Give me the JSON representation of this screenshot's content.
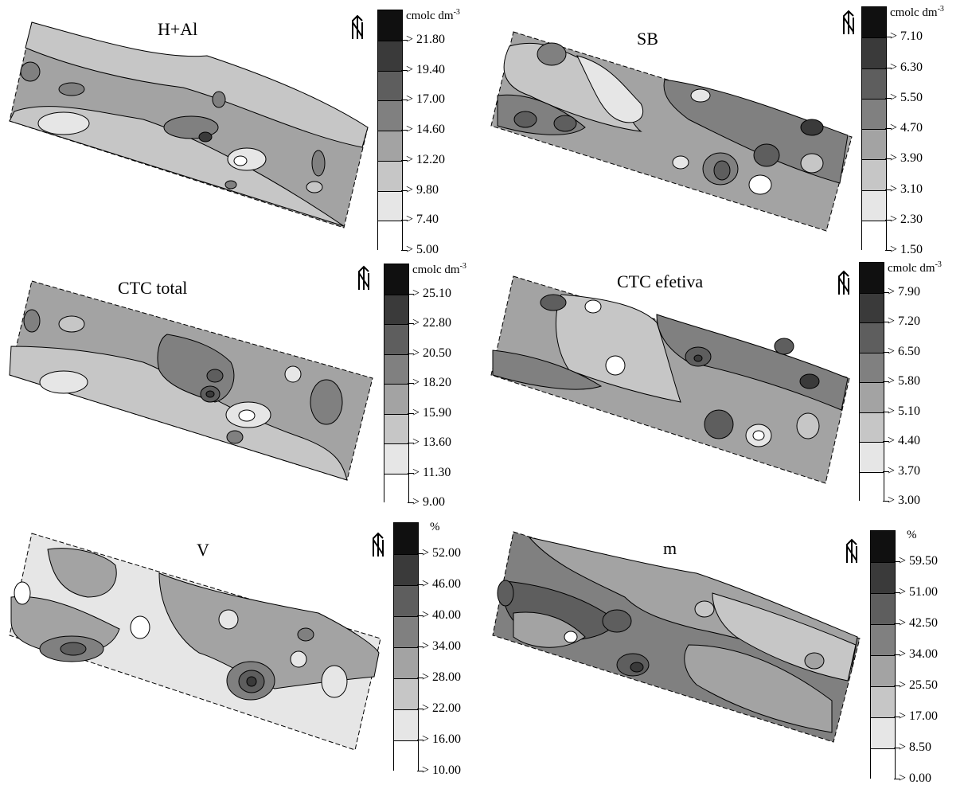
{
  "panels": [
    {
      "title": "H+Al",
      "unit": "cmolc dm",
      "unit_exp": "-3",
      "classes": [
        "> 21.80",
        "> 19.40",
        "> 17.00",
        "> 14.60",
        "> 12.20",
        "> 9.80",
        "> 7.40",
        "> 5.00"
      ]
    },
    {
      "title": "SB",
      "unit": "cmolc dm",
      "unit_exp": "-3",
      "classes": [
        "> 7.10",
        "> 6.30",
        "> 5.50",
        "> 4.70",
        "> 3.90",
        "> 3.10",
        "> 2.30",
        "> 1.50"
      ]
    },
    {
      "title": "CTC total",
      "unit": "cmolc dm",
      "unit_exp": "-3",
      "classes": [
        "> 25.10",
        "> 22.80",
        "> 20.50",
        "> 18.20",
        "> 15.90",
        "> 13.60",
        "> 11.30",
        "> 9.00"
      ]
    },
    {
      "title": "CTC efetiva",
      "unit": "cmolc dm",
      "unit_exp": "-3",
      "classes": [
        "> 7.90",
        "> 7.20",
        "> 6.50",
        "> 5.80",
        "> 5.10",
        "> 4.40",
        "> 3.70",
        "> 3.00"
      ]
    },
    {
      "title": "V",
      "unit": "%",
      "unit_exp": "",
      "classes": [
        "> 52.00",
        "> 46.00",
        "> 40.00",
        "> 34.00",
        "> 28.00",
        "> 22.00",
        "> 16.00",
        "> 10.00"
      ]
    },
    {
      "title": "m",
      "unit": "%",
      "unit_exp": "",
      "classes": [
        "> 59.50",
        "> 51.00",
        "> 42.50",
        "> 34.00",
        "> 25.50",
        "> 17.00",
        "> 8.50",
        "> 0.00"
      ]
    }
  ],
  "class_colors": [
    "#101010",
    "#3a3a3a",
    "#5e5e5e",
    "#808080",
    "#a3a3a3",
    "#c6c6c6",
    "#e6e6e6",
    "#ffffff"
  ],
  "north_arrow_icon": "north-arrow-icon"
}
